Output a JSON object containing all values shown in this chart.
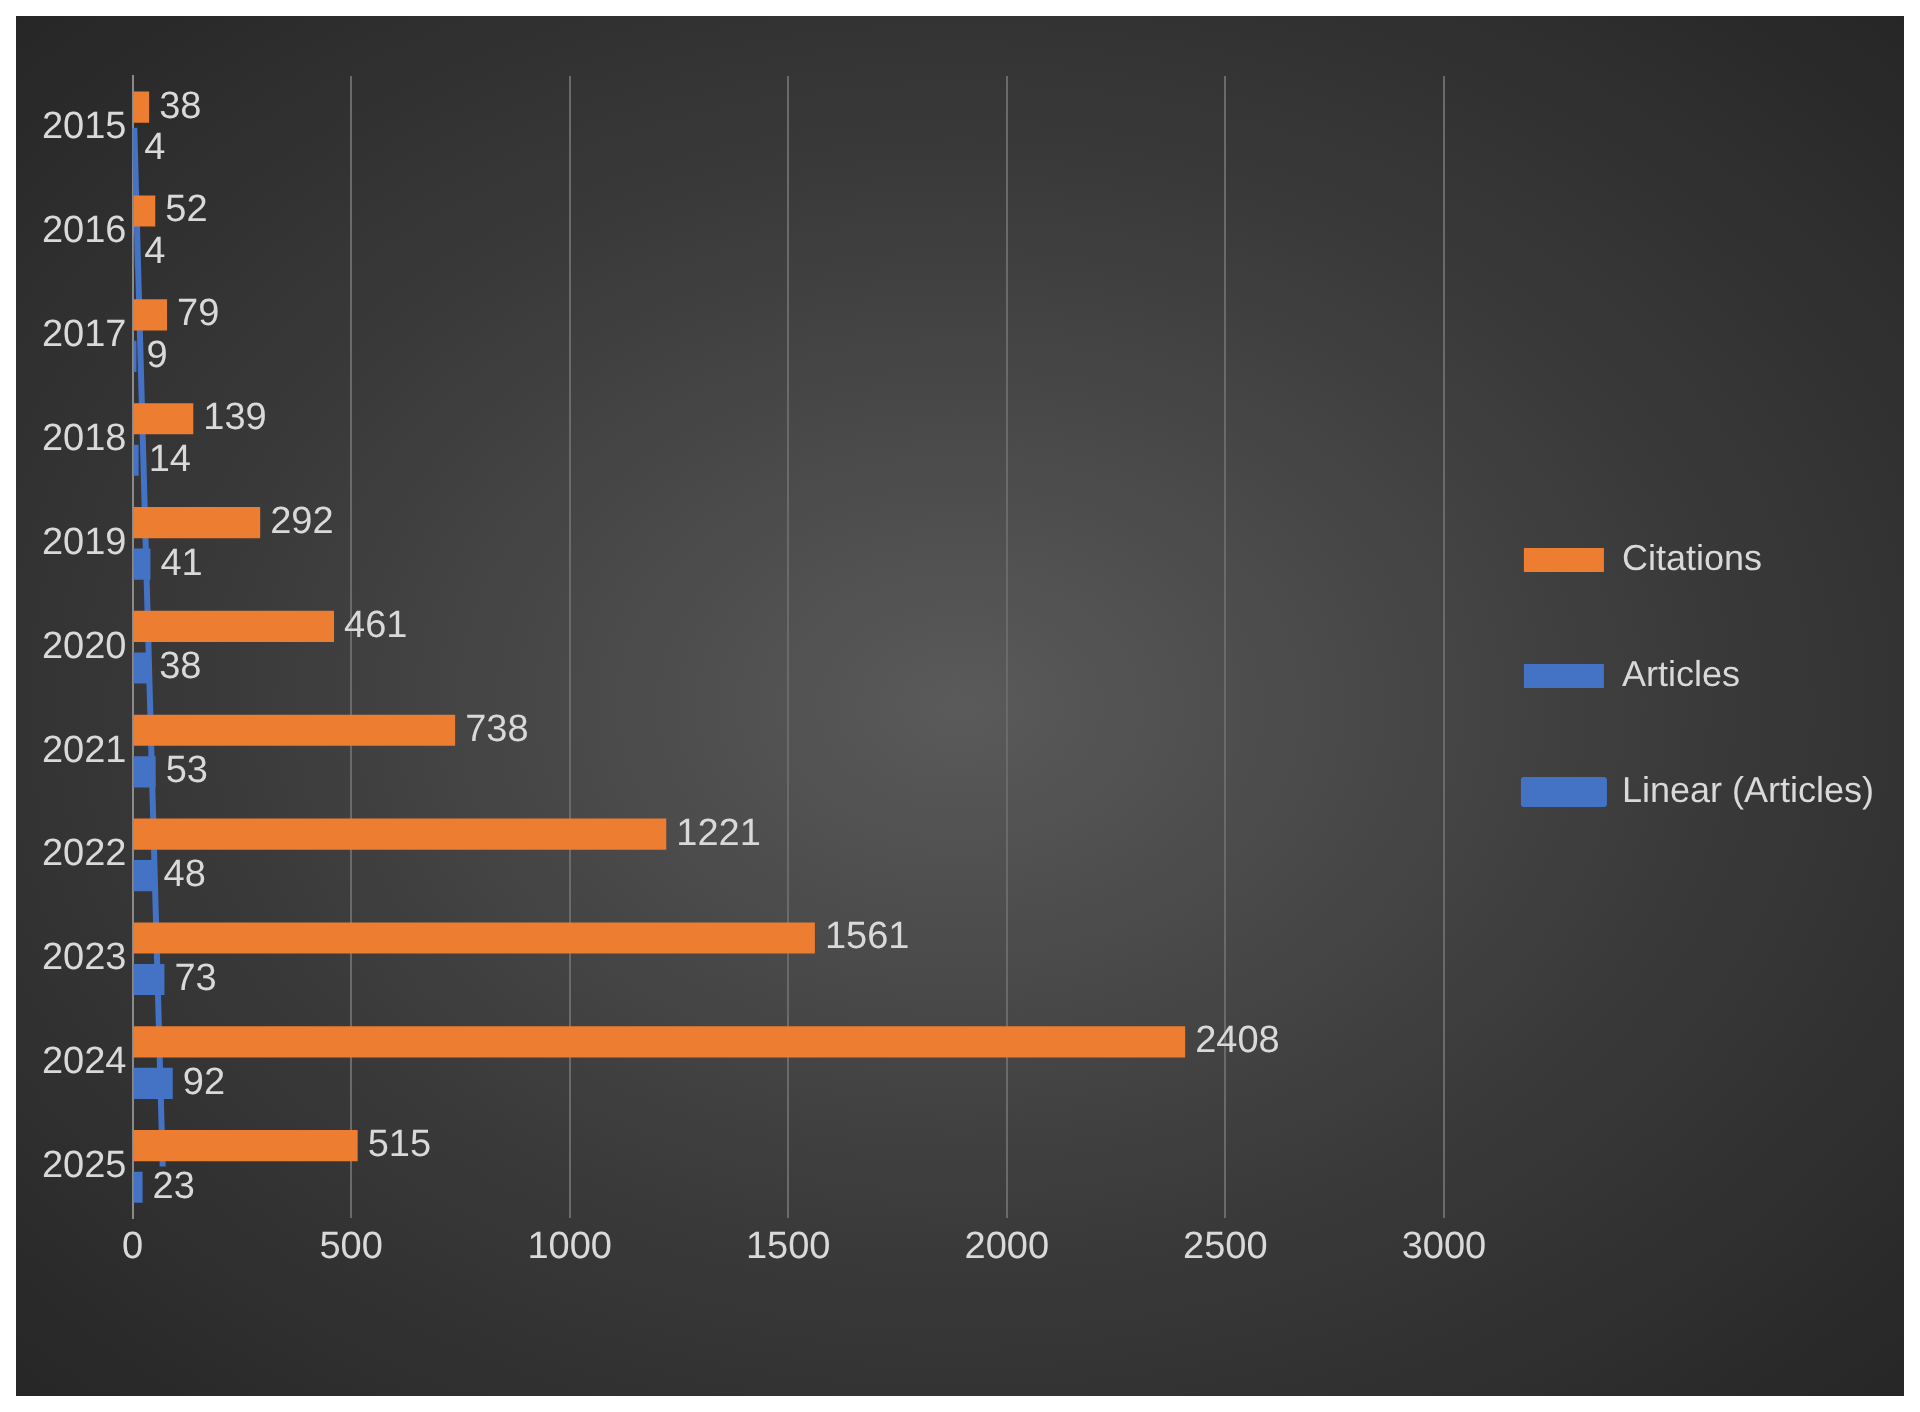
{
  "chart_data": {
    "type": "bar",
    "orientation": "horizontal",
    "categories": [
      "2015",
      "2016",
      "2017",
      "2018",
      "2019",
      "2020",
      "2021",
      "2022",
      "2023",
      "2024",
      "2025"
    ],
    "series": [
      {
        "name": "Citations",
        "color": "#ed7d31",
        "values": [
          38,
          52,
          79,
          139,
          292,
          461,
          738,
          1221,
          1561,
          2408,
          515
        ],
        "value_labels": [
          "38",
          "52",
          "79",
          "139",
          "292",
          "461",
          "738",
          "1221",
          "1561",
          "2408",
          "515"
        ]
      },
      {
        "name": "Articles",
        "color": "#4472c4",
        "values": [
          4,
          4,
          9,
          14,
          41,
          38,
          53,
          48,
          73,
          92,
          23
        ],
        "value_labels": [
          "4",
          "4",
          "9",
          "14",
          "41",
          "38",
          "53",
          "48",
          "73",
          "92",
          "23"
        ]
      },
      {
        "name": "Linear (Articles)",
        "type": "line",
        "color": "#4472c4",
        "values": [
          4,
          null,
          null,
          null,
          null,
          null,
          null,
          null,
          null,
          null,
          69
        ]
      }
    ],
    "xlim": [
      0,
      3000
    ],
    "xticks": [
      0,
      500,
      1000,
      1500,
      2000,
      2500,
      3000
    ],
    "grid": "x",
    "legend": "right",
    "marker": "none"
  }
}
